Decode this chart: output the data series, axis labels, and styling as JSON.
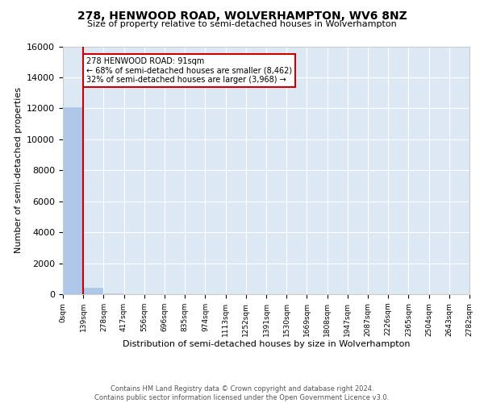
{
  "title": "278, HENWOOD ROAD, WOLVERHAMPTON, WV6 8NZ",
  "subtitle": "Size of property relative to semi-detached houses in Wolverhampton",
  "xlabel": "Distribution of semi-detached houses by size in Wolverhampton",
  "ylabel": "Number of semi-detached properties",
  "bar_color": "#aec6e8",
  "background_color": "#dde8f5",
  "grid_color": "#ffffff",
  "annotation_box_color": "#cc0000",
  "property_line_color": "#cc0000",
  "annotation_text_line1": "278 HENWOOD ROAD: 91sqm",
  "annotation_text_line2": "← 68% of semi-detached houses are smaller (8,462)",
  "annotation_text_line3": "32% of semi-detached houses are larger (3,968) →",
  "bin_edges": [
    0,
    139,
    278,
    417,
    556,
    696,
    835,
    974,
    1113,
    1252,
    1391,
    1530,
    1669,
    1808,
    1947,
    2087,
    2226,
    2365,
    2504,
    2643,
    2782
  ],
  "bin_labels": [
    "0sqm",
    "139sqm",
    "278sqm",
    "417sqm",
    "556sqm",
    "696sqm",
    "835sqm",
    "974sqm",
    "1113sqm",
    "1252sqm",
    "1391sqm",
    "1530sqm",
    "1669sqm",
    "1808sqm",
    "1947sqm",
    "2087sqm",
    "2226sqm",
    "2365sqm",
    "2504sqm",
    "2643sqm",
    "2782sqm"
  ],
  "bar_heights": [
    12050,
    430,
    60,
    20,
    10,
    5,
    3,
    2,
    1,
    1,
    1,
    1,
    0,
    0,
    0,
    0,
    0,
    0,
    0,
    0
  ],
  "ylim": [
    0,
    16000
  ],
  "yticks": [
    0,
    2000,
    4000,
    6000,
    8000,
    10000,
    12000,
    14000,
    16000
  ],
  "footer_line1": "Contains HM Land Registry data © Crown copyright and database right 2024.",
  "footer_line2": "Contains public sector information licensed under the Open Government Licence v3.0."
}
